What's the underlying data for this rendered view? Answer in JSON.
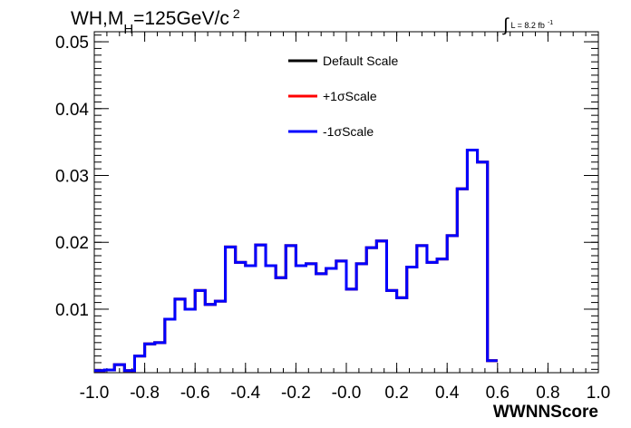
{
  "chart_data": {
    "type": "step-histogram",
    "title": {
      "prefix": "WH,M",
      "subscript": "H",
      "value": "=125GeV/c",
      "superscript": "2"
    },
    "luminosity": {
      "integral_sign": "∫",
      "text": "L = 8.2 fb",
      "superscript": "-1"
    },
    "xlabel": "WWNNScore",
    "xlim": [
      -1.0,
      1.0
    ],
    "ylim": [
      0.0005,
      0.0515
    ],
    "x_ticks": [
      "-1.0",
      "-0.8",
      "-0.6",
      "-0.4",
      "-0.2",
      "-0.0",
      "0.2",
      "0.4",
      "0.6",
      "0.8",
      "1.0"
    ],
    "x_tick_values": [
      -1.0,
      -0.8,
      -0.6,
      -0.4,
      -0.2,
      0.0,
      0.2,
      0.4,
      0.6,
      0.8,
      1.0
    ],
    "y_ticks": [
      "0.01",
      "0.02",
      "0.03",
      "0.04",
      "0.05"
    ],
    "y_tick_values": [
      0.01,
      0.02,
      0.03,
      0.04,
      0.05
    ],
    "bin_edges_start": -1.0,
    "bin_width": 0.04,
    "series": [
      {
        "name": "Default Scale",
        "color": "#000000",
        "values": [
          0.0008,
          0.0009,
          0.0017,
          0.0008,
          0.003,
          0.0048,
          0.005,
          0.0085,
          0.0115,
          0.01,
          0.0128,
          0.0107,
          0.0112,
          0.0193,
          0.017,
          0.0165,
          0.0196,
          0.0165,
          0.0147,
          0.0195,
          0.0165,
          0.0168,
          0.0153,
          0.0161,
          0.0172,
          0.013,
          0.0168,
          0.0192,
          0.0202,
          0.0128,
          0.0117,
          0.0163,
          0.0195,
          0.017,
          0.0175,
          0.021,
          0.028,
          0.0338,
          0.032,
          0.0023
        ]
      },
      {
        "name": "+1σScale",
        "color": "#ff0000",
        "values": [
          0.0008,
          0.0009,
          0.0017,
          0.0008,
          0.003,
          0.0048,
          0.005,
          0.0085,
          0.0115,
          0.01,
          0.0128,
          0.0107,
          0.0112,
          0.0193,
          0.017,
          0.0165,
          0.0196,
          0.0165,
          0.0147,
          0.0195,
          0.0165,
          0.0168,
          0.0153,
          0.0161,
          0.0172,
          0.013,
          0.0168,
          0.0192,
          0.0202,
          0.0128,
          0.0117,
          0.0163,
          0.0195,
          0.017,
          0.0175,
          0.021,
          0.028,
          0.0338,
          0.032,
          0.0023
        ]
      },
      {
        "name": "-1σScale",
        "color": "#0000ff",
        "values": [
          0.0008,
          0.0009,
          0.0017,
          0.0008,
          0.003,
          0.0048,
          0.005,
          0.0085,
          0.0115,
          0.01,
          0.0128,
          0.0107,
          0.0112,
          0.0193,
          0.017,
          0.0165,
          0.0196,
          0.0165,
          0.0147,
          0.0195,
          0.0165,
          0.0168,
          0.0153,
          0.0161,
          0.0172,
          0.013,
          0.0168,
          0.0192,
          0.0202,
          0.0128,
          0.0117,
          0.0163,
          0.0195,
          0.017,
          0.0175,
          0.021,
          0.028,
          0.0338,
          0.032,
          0.0023
        ]
      }
    ],
    "legend_position": "top-center"
  }
}
